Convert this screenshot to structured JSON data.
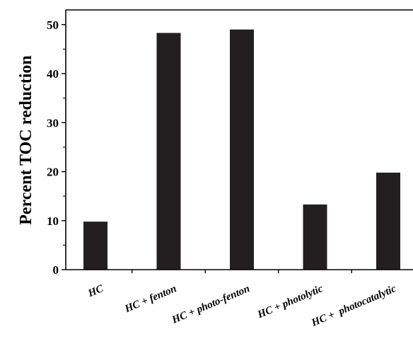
{
  "chart_data": {
    "type": "bar",
    "title": "",
    "xlabel": "",
    "ylabel": "Percent TOC reduction",
    "categories": [
      "HC",
      "HC + fenton",
      "HC + photo-fenton",
      "HC + photolytic",
      "HC +  photocatalytic"
    ],
    "values": [
      9.8,
      48.3,
      49.0,
      13.3,
      19.8
    ],
    "ylim": [
      0,
      53
    ],
    "yticks": [
      "0",
      "10",
      "20",
      "30",
      "40",
      "50"
    ],
    "grid": false,
    "bar_color": "#231f20"
  }
}
